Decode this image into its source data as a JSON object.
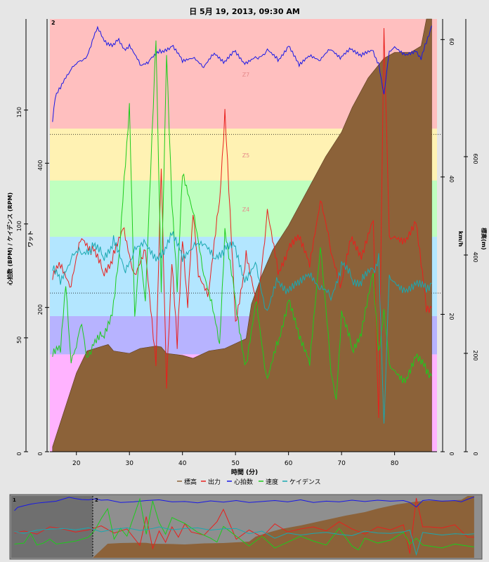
{
  "chart_data": {
    "type": "area",
    "title": "日 5月 19, 2013, 09:30 AM",
    "xlabel": "時間 (分)",
    "xlim": [
      15,
      88
    ],
    "x_ticks": [
      20,
      30,
      40,
      50,
      60,
      70,
      80
    ],
    "axes": {
      "hr_cad": {
        "label": "心拍数 (BPM) / ケイデンス (RPM)",
        "range": [
          0,
          190
        ],
        "ticks": [
          0,
          50,
          100,
          150
        ]
      },
      "watts": {
        "label": "ワット",
        "range": [
          0,
          600
        ],
        "ticks": [
          0,
          200,
          400
        ]
      },
      "speed": {
        "label": "km/h",
        "range": [
          0,
          63
        ],
        "ticks": [
          0,
          20,
          40,
          60
        ]
      },
      "altitude": {
        "label": "標高(m)",
        "range": [
          0,
          880
        ],
        "ticks": [
          0,
          200,
          400,
          600
        ]
      }
    },
    "zones": [
      {
        "label": "",
        "from": 0,
        "to": 135,
        "color": "#ffb3ff"
      },
      {
        "label": "",
        "from": 135,
        "to": 188,
        "color": "#b7b3ff"
      },
      {
        "label": "",
        "from": 188,
        "to": 298,
        "color": "#b3e6ff"
      },
      {
        "label": "Z4",
        "from": 298,
        "to": 376,
        "color": "#bfffbf"
      },
      {
        "label": "Z5",
        "from": 376,
        "to": 448,
        "color": "#fff2b3"
      },
      {
        "label": "Z7",
        "from": 448,
        "to": 600,
        "color": "#ffbfbf"
      }
    ],
    "reference_lines": [
      {
        "axis": "watts",
        "value": 220,
        "style": "dotted"
      },
      {
        "axis": "watts",
        "value": 440,
        "style": "dotted"
      }
    ],
    "interval_marker": "2",
    "series": [
      {
        "name": "標高",
        "axis": "altitude",
        "color": "#8c6239",
        "fill": true,
        "x": [
          15.5,
          17,
          20,
          22,
          25,
          26,
          27,
          30,
          32,
          35,
          36,
          37,
          40,
          42,
          45,
          48,
          50,
          52,
          53,
          55,
          57,
          60,
          63,
          65,
          67,
          70,
          72,
          75,
          78,
          80,
          83,
          85,
          86,
          87
        ],
        "values": [
          10,
          60,
          160,
          205,
          215,
          218,
          205,
          200,
          210,
          215,
          213,
          200,
          196,
          190,
          205,
          210,
          220,
          230,
          300,
          360,
          410,
          460,
          520,
          560,
          600,
          650,
          700,
          760,
          800,
          812,
          812,
          825,
          930,
          955
        ]
      },
      {
        "name": "出力",
        "axis": "watts",
        "color": "#e8201d",
        "x": [
          15.5,
          17,
          19,
          21,
          23,
          25,
          27,
          29,
          31,
          33,
          35,
          36,
          37,
          38,
          39,
          40,
          41,
          42,
          43,
          45,
          47,
          48,
          50,
          52,
          54,
          56,
          58,
          60,
          62,
          64,
          66,
          68,
          70,
          72,
          74,
          76,
          77,
          78,
          79,
          80,
          82,
          84,
          86,
          87
        ],
        "values": [
          240,
          260,
          230,
          300,
          280,
          250,
          270,
          310,
          240,
          280,
          120,
          400,
          90,
          260,
          150,
          300,
          200,
          330,
          250,
          220,
          350,
          470,
          180,
          270,
          200,
          330,
          250,
          280,
          300,
          260,
          350,
          280,
          230,
          300,
          270,
          320,
          40,
          580,
          300,
          300,
          290,
          320,
          200,
          200
        ]
      },
      {
        "name": "心拍数",
        "axis": "hr_cad",
        "color": "#1818e6",
        "x": [
          15.5,
          16,
          17,
          18,
          19,
          20,
          21,
          22,
          23,
          24,
          25,
          26,
          27,
          28,
          29,
          30,
          32,
          34,
          36,
          38,
          40,
          42,
          44,
          46,
          48,
          50,
          52,
          54,
          56,
          58,
          60,
          62,
          64,
          66,
          68,
          70,
          72,
          74,
          76,
          77,
          78,
          79,
          80,
          82,
          84,
          85,
          86,
          87
        ],
        "values": [
          145,
          155,
          160,
          165,
          168,
          170,
          172,
          174,
          180,
          186,
          182,
          179,
          178,
          181,
          177,
          178,
          170,
          172,
          176,
          178,
          172,
          173,
          169,
          175,
          171,
          176,
          170,
          173,
          176,
          172,
          178,
          170,
          174,
          172,
          177,
          173,
          177,
          174,
          176,
          170,
          156,
          176,
          178,
          174,
          176,
          172,
          180,
          187
        ]
      },
      {
        "name": "速度",
        "axis": "speed",
        "color": "#1ccc1c",
        "x": [
          15.5,
          17,
          18,
          19,
          20,
          21,
          22,
          23,
          25,
          27,
          28,
          29,
          30,
          31,
          32,
          33,
          35,
          36,
          37,
          38,
          39,
          40,
          42,
          44,
          46,
          47,
          48,
          50,
          52,
          54,
          56,
          58,
          60,
          62,
          64,
          66,
          68,
          69,
          70,
          72,
          74,
          76,
          77,
          78,
          79,
          80,
          82,
          84,
          86,
          87
        ],
        "values": [
          14,
          15,
          25,
          13,
          15,
          19,
          14,
          15,
          17,
          21,
          28,
          40,
          50,
          19,
          30,
          22,
          60,
          24,
          58,
          36,
          24,
          41,
          35,
          26,
          20,
          16,
          32,
          22,
          12,
          22,
          10,
          16,
          22,
          17,
          13,
          30,
          12,
          8,
          20,
          15,
          18,
          26,
          14,
          20,
          13,
          12,
          10,
          14,
          12,
          11
        ]
      },
      {
        "name": "ケイデンス",
        "axis": "hr_cad",
        "color": "#1aa8b0",
        "x": [
          15.5,
          17,
          19,
          21,
          23,
          25,
          27,
          29,
          31,
          33,
          35,
          37,
          38,
          40,
          42,
          44,
          46,
          48,
          50,
          52,
          54,
          56,
          58,
          60,
          62,
          64,
          66,
          68,
          70,
          72,
          74,
          76,
          77,
          78,
          79,
          80,
          82,
          84,
          86,
          87
        ],
        "values": [
          80,
          75,
          85,
          88,
          90,
          86,
          92,
          80,
          88,
          92,
          84,
          90,
          95,
          86,
          90,
          92,
          85,
          89,
          90,
          74,
          82,
          60,
          76,
          70,
          75,
          78,
          72,
          68,
          82,
          76,
          75,
          80,
          85,
          10,
          78,
          75,
          70,
          74,
          72,
          74
        ]
      }
    ],
    "legend": {
      "placement": "bottom"
    },
    "overview": {
      "interval_markers": [
        "1",
        "2"
      ],
      "selection_from": 15.5,
      "selection_to": 87
    }
  }
}
